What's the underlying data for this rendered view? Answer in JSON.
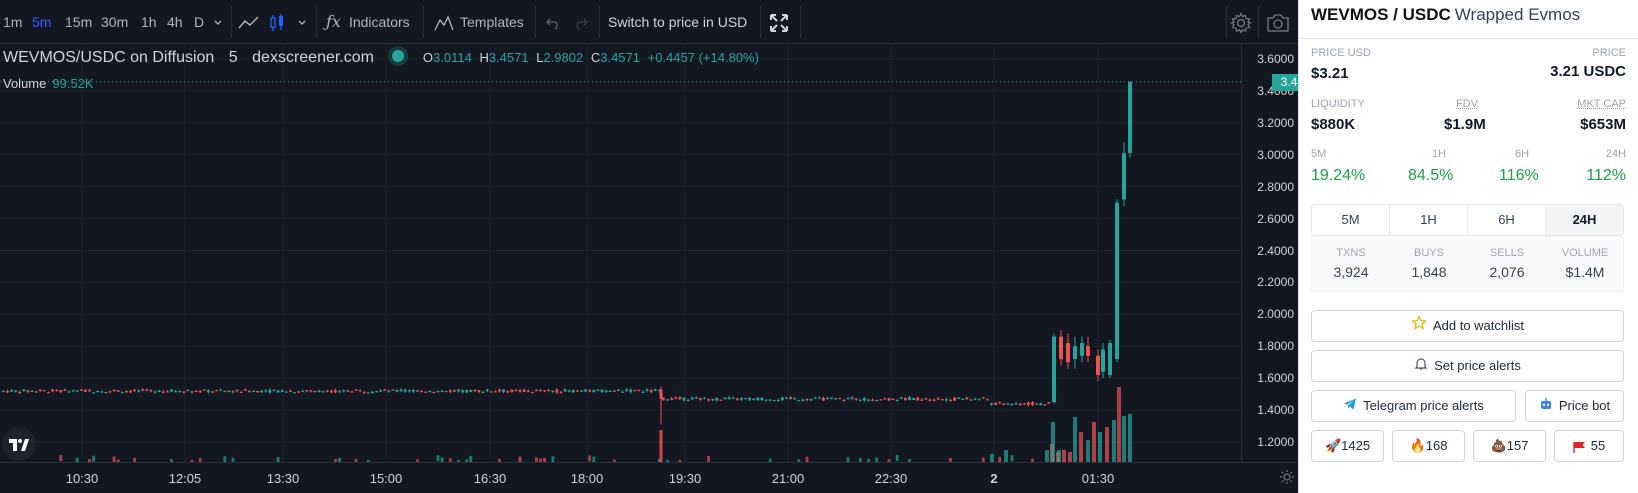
{
  "toolbar": {
    "timeframes": [
      "1m",
      "5m",
      "15m",
      "30m",
      "1h",
      "4h",
      "D"
    ],
    "active_timeframe": "5m",
    "indicators_label": "Indicators",
    "templates_label": "Templates",
    "switch_label": "Switch to price in USD"
  },
  "legend": {
    "symbol": "WEVMOS/USDC on Diffusion",
    "interval": "5",
    "source": "dexscreener.com",
    "o_label": "O",
    "o": "3.0114",
    "h_label": "H",
    "h": "3.4571",
    "l_label": "L",
    "l": "2.9802",
    "c_label": "C",
    "c": "3.4571",
    "change": "+0.4457 (+14.80%)",
    "volume_label": "Volume",
    "volume": "99.52K"
  },
  "chart_data": {
    "type": "candlestick",
    "price_ticks": [
      "3.6000",
      "3.4000",
      "3.2000",
      "3.0000",
      "2.8000",
      "2.6000",
      "2.4000",
      "2.2000",
      "2.0000",
      "1.8000",
      "1.6000",
      "1.4000",
      "1.2000"
    ],
    "time_ticks": [
      "10:30",
      "12:05",
      "13:30",
      "15:00",
      "16:30",
      "18:00",
      "19:30",
      "21:00",
      "22:30",
      "2",
      "01:30"
    ],
    "last_price": "3.4571",
    "ylim": [
      1.2,
      3.6
    ],
    "baseline_series": [
      {
        "range": "09:50-19:05",
        "approx_price": 1.52
      },
      {
        "range": "19:05-00:20",
        "approx_price": 1.47
      },
      {
        "range": "00:20-00:45",
        "approx_price": 1.44
      }
    ],
    "key_candles": [
      {
        "time": "00:45",
        "open": 1.45,
        "high": 1.88,
        "low": 1.44,
        "close": 1.86
      },
      {
        "time": "00:55",
        "open": 1.82,
        "high": 1.88,
        "low": 1.66,
        "close": 1.7
      },
      {
        "time": "01:00",
        "open": 1.72,
        "high": 1.86,
        "low": 1.66,
        "close": 1.8
      },
      {
        "time": "01:05",
        "open": 1.8,
        "high": 1.86,
        "low": 1.7,
        "close": 1.74
      },
      {
        "time": "01:10",
        "open": 1.74,
        "high": 1.78,
        "low": 1.58,
        "close": 1.62
      },
      {
        "time": "01:15",
        "open": 1.62,
        "high": 1.84,
        "low": 1.6,
        "close": 1.82
      },
      {
        "time": "01:20",
        "open": 1.72,
        "high": 2.72,
        "low": 1.7,
        "close": 2.7
      },
      {
        "time": "01:25",
        "open": 2.72,
        "high": 3.08,
        "low": 2.68,
        "close": 3.01
      },
      {
        "time": "01:30",
        "open": 3.0114,
        "high": 3.4571,
        "low": 2.9802,
        "close": 3.4571
      }
    ]
  },
  "panel": {
    "pair_base": "WEVMOS / USDC",
    "pair_name": "Wrapped Evmos",
    "price_usd_label": "PRICE USD",
    "price_usd": "$3.21",
    "price_label": "PRICE",
    "price": "3.21 USDC",
    "liquidity_label": "LIQUIDITY",
    "liquidity": "$880K",
    "fdv_label": "FDV",
    "fdv": "$1.9M",
    "mktcap_label": "MKT CAP",
    "mktcap": "$653M",
    "changes": [
      {
        "label": "5M",
        "value": "19.24%"
      },
      {
        "label": "1H",
        "value": "84.5%"
      },
      {
        "label": "6H",
        "value": "116%"
      },
      {
        "label": "24H",
        "value": "112%"
      }
    ],
    "tabs": [
      "5M",
      "1H",
      "6H",
      "24H"
    ],
    "active_tab": "24H",
    "stats": [
      {
        "label": "TXNS",
        "value": "3,924"
      },
      {
        "label": "BUYS",
        "value": "1,848"
      },
      {
        "label": "SELLS",
        "value": "2,076"
      },
      {
        "label": "VOLUME",
        "value": "$1.4M"
      }
    ],
    "watchlist_label": "Add to watchlist",
    "alerts_label": "Set price alerts",
    "telegram_label": "Telegram price alerts",
    "pricebot_label": "Price bot",
    "reactions": [
      {
        "icon": "rocket-icon",
        "count": "1425"
      },
      {
        "icon": "fire-icon",
        "count": "168"
      },
      {
        "icon": "poop-icon",
        "count": "157"
      },
      {
        "icon": "red-flag-icon",
        "count": "55"
      }
    ]
  },
  "colors": {
    "up": "#26a69a",
    "down": "#ef5350",
    "chart_bg": "#131722",
    "positive_change": "#16a34a"
  }
}
